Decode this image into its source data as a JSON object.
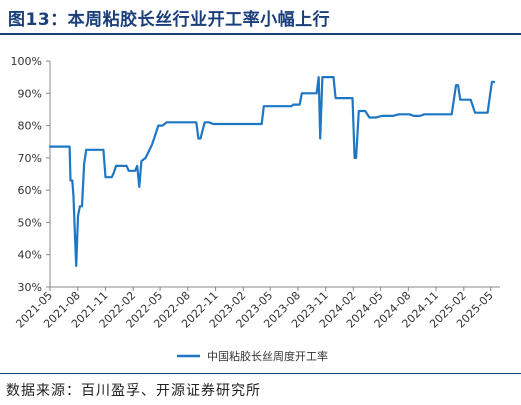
{
  "title": "图13：本周粘胶长丝行业开工率小幅上行",
  "source": "数据来源：百川盈孚、开源证券研究所",
  "colors": {
    "line": "#1f77c4",
    "title": "#1a3f7a"
  },
  "chart_data": {
    "type": "line",
    "xlabel": "",
    "ylabel": "",
    "ylim": [
      30,
      100
    ],
    "ytick_labels": [
      "30%",
      "40%",
      "50%",
      "60%",
      "70%",
      "80%",
      "90%",
      "100%"
    ],
    "xtick_labels": [
      "2021-05",
      "2021-08",
      "2021-11",
      "2022-02",
      "2022-05",
      "2022-08",
      "2022-11",
      "2023-02",
      "2023-05",
      "2023-08",
      "2023-11",
      "2024-02",
      "2024-05",
      "2024-08",
      "2024-11",
      "2025-02",
      "2025-05"
    ],
    "x_axis_range": [
      "2021-05-01",
      "2025-06-01"
    ],
    "grid": false,
    "legend_position": "bottom",
    "series": [
      {
        "name": "中国粘胶长丝周度开工率",
        "color": "#1f77c4",
        "points": [
          [
            "2021-05-01",
            73.5
          ],
          [
            "2021-07-05",
            73.5
          ],
          [
            "2021-07-08",
            63
          ],
          [
            "2021-07-14",
            63
          ],
          [
            "2021-07-18",
            58
          ],
          [
            "2021-07-22",
            48
          ],
          [
            "2021-07-27",
            36.5
          ],
          [
            "2021-08-02",
            52
          ],
          [
            "2021-08-08",
            55
          ],
          [
            "2021-08-15",
            55
          ],
          [
            "2021-08-22",
            68
          ],
          [
            "2021-08-29",
            72.5
          ],
          [
            "2021-10-25",
            72.5
          ],
          [
            "2021-11-01",
            64
          ],
          [
            "2021-11-22",
            64
          ],
          [
            "2021-11-29",
            65.5
          ],
          [
            "2021-12-06",
            67.5
          ],
          [
            "2022-01-10",
            67.5
          ],
          [
            "2022-01-17",
            66
          ],
          [
            "2022-02-07",
            66
          ],
          [
            "2022-02-14",
            67.5
          ],
          [
            "2022-02-21",
            61
          ],
          [
            "2022-02-28",
            69
          ],
          [
            "2022-03-14",
            70
          ],
          [
            "2022-04-04",
            74
          ],
          [
            "2022-04-11",
            76
          ],
          [
            "2022-04-25",
            80
          ],
          [
            "2022-05-09",
            80
          ],
          [
            "2022-05-23",
            81
          ],
          [
            "2022-08-29",
            81
          ],
          [
            "2022-09-05",
            76
          ],
          [
            "2022-09-12",
            76
          ],
          [
            "2022-09-26",
            81
          ],
          [
            "2022-10-10",
            81
          ],
          [
            "2022-10-24",
            80.5
          ],
          [
            "2023-04-03",
            80.5
          ],
          [
            "2023-04-10",
            86
          ],
          [
            "2023-07-10",
            86
          ],
          [
            "2023-07-17",
            86.5
          ],
          [
            "2023-08-07",
            86.5
          ],
          [
            "2023-08-14",
            90
          ],
          [
            "2023-10-02",
            90
          ],
          [
            "2023-10-09",
            95
          ],
          [
            "2023-10-14",
            76
          ],
          [
            "2023-10-21",
            95
          ],
          [
            "2023-11-27",
            95
          ],
          [
            "2023-12-04",
            88.5
          ],
          [
            "2024-01-29",
            88.5
          ],
          [
            "2024-02-05",
            70
          ],
          [
            "2024-02-10",
            70
          ],
          [
            "2024-02-19",
            84.5
          ],
          [
            "2024-03-11",
            84.5
          ],
          [
            "2024-03-25",
            82.5
          ],
          [
            "2024-04-15",
            82.5
          ],
          [
            "2024-05-06",
            83
          ],
          [
            "2024-06-10",
            83
          ],
          [
            "2024-07-01",
            83.5
          ],
          [
            "2024-08-05",
            83.5
          ],
          [
            "2024-08-19",
            83
          ],
          [
            "2024-09-09",
            83
          ],
          [
            "2024-09-23",
            83.5
          ],
          [
            "2024-12-23",
            83.5
          ],
          [
            "2025-01-06",
            92.5
          ],
          [
            "2025-01-13",
            92.5
          ],
          [
            "2025-01-20",
            88
          ],
          [
            "2025-02-24",
            88
          ],
          [
            "2025-03-10",
            84
          ],
          [
            "2025-04-21",
            84
          ],
          [
            "2025-05-05",
            93.5
          ],
          [
            "2025-05-12",
            93.5
          ]
        ]
      }
    ]
  }
}
